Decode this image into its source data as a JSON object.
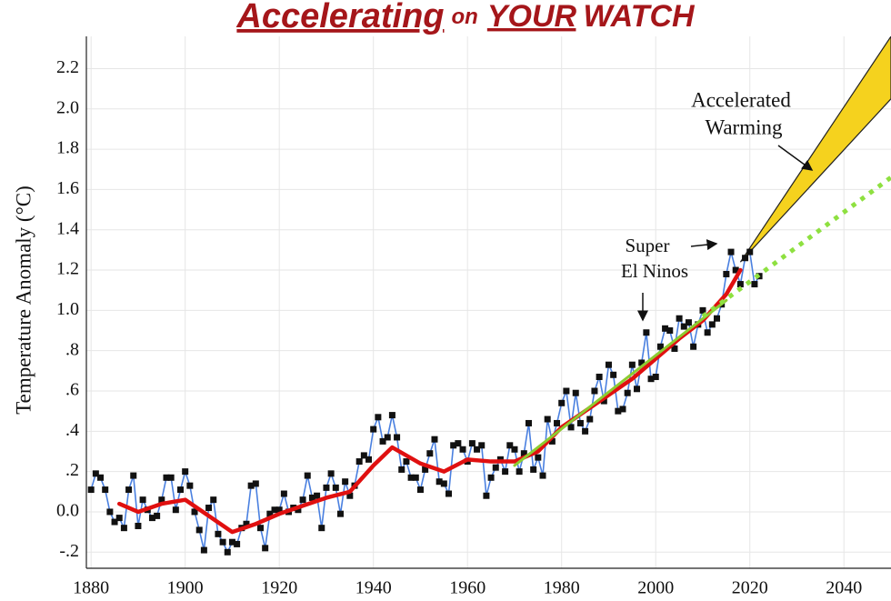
{
  "chart_data": {
    "type": "line",
    "title": [
      "Accelerating",
      "on",
      "YOUR",
      "WATCH"
    ],
    "y_label": "Temperature Anomaly (°C)",
    "xlim": [
      1879,
      2050
    ],
    "xticks": [
      1880,
      1900,
      1920,
      1940,
      1960,
      1980,
      2000,
      2020,
      2040
    ],
    "ylim": [
      -0.28,
      2.36
    ],
    "yticks": [
      {
        "value": -0.2,
        "label": "-.2"
      },
      {
        "value": 0,
        "label": "0.0"
      },
      {
        "value": 0.2,
        "label": ".2"
      },
      {
        "value": 0.4,
        "label": ".4"
      },
      {
        "value": 0.6,
        "label": ".6"
      },
      {
        "value": 0.8,
        "label": ".8"
      },
      {
        "value": 1,
        "label": "1.0"
      },
      1.2,
      1.4,
      1.6,
      1.8,
      {
        "value": 2,
        "label": "2.0"
      },
      2.2
    ],
    "grid": true,
    "series": [
      {
        "color": "#4a80e0",
        "marker_color": "#111111",
        "x": [
          1880,
          1881,
          1882,
          1883,
          1884,
          1885,
          1886,
          1887,
          1888,
          1889,
          1890,
          1891,
          1892,
          1893,
          1894,
          1895,
          1896,
          1897,
          1898,
          1899,
          1900,
          1901,
          1902,
          1903,
          1904,
          1905,
          1906,
          1907,
          1908,
          1909,
          1910,
          1911,
          1912,
          1913,
          1914,
          1915,
          1916,
          1917,
          1918,
          1919,
          1920,
          1921,
          1922,
          1923,
          1924,
          1925,
          1926,
          1927,
          1928,
          1929,
          1930,
          1931,
          1932,
          1933,
          1934,
          1935,
          1936,
          1937,
          1938,
          1939,
          1940,
          1941,
          1942,
          1943,
          1944,
          1945,
          1946,
          1947,
          1948,
          1949,
          1950,
          1951,
          1952,
          1953,
          1954,
          1955,
          1956,
          1957,
          1958,
          1959,
          1960,
          1961,
          1962,
          1963,
          1964,
          1965,
          1966,
          1967,
          1968,
          1969,
          1970,
          1971,
          1972,
          1973,
          1974,
          1975,
          1976,
          1977,
          1978,
          1979,
          1980,
          1981,
          1982,
          1983,
          1984,
          1985,
          1986,
          1987,
          1988,
          1989,
          1990,
          1991,
          1992,
          1993,
          1994,
          1995,
          1996,
          1997,
          1998,
          1999,
          2000,
          2001,
          2002,
          2003,
          2004,
          2005,
          2006,
          2007,
          2008,
          2009,
          2010,
          2011,
          2012,
          2013,
          2014,
          2015,
          2016,
          2017,
          2018,
          2019,
          2020,
          2021,
          2022
        ],
        "values": [
          0.11,
          0.19,
          0.17,
          0.11,
          0.0,
          -0.05,
          -0.03,
          -0.08,
          0.11,
          0.18,
          -0.07,
          0.06,
          0.01,
          -0.03,
          -0.02,
          0.06,
          0.17,
          0.17,
          0.01,
          0.11,
          0.2,
          0.13,
          0.0,
          -0.09,
          -0.19,
          0.02,
          0.06,
          -0.11,
          -0.15,
          -0.2,
          -0.15,
          -0.16,
          -0.08,
          -0.06,
          0.13,
          0.14,
          -0.08,
          -0.18,
          -0.01,
          0.01,
          0.01,
          0.09,
          0.0,
          0.02,
          0.01,
          0.06,
          0.18,
          0.07,
          0.08,
          -0.08,
          0.12,
          0.19,
          0.12,
          -0.01,
          0.15,
          0.08,
          0.13,
          0.25,
          0.28,
          0.26,
          0.41,
          0.47,
          0.35,
          0.37,
          0.48,
          0.37,
          0.21,
          0.25,
          0.17,
          0.17,
          0.11,
          0.21,
          0.29,
          0.36,
          0.15,
          0.14,
          0.09,
          0.33,
          0.34,
          0.31,
          0.25,
          0.34,
          0.31,
          0.33,
          0.08,
          0.17,
          0.22,
          0.26,
          0.2,
          0.33,
          0.31,
          0.2,
          0.29,
          0.44,
          0.21,
          0.27,
          0.18,
          0.46,
          0.35,
          0.44,
          0.54,
          0.6,
          0.42,
          0.59,
          0.44,
          0.4,
          0.46,
          0.6,
          0.67,
          0.55,
          0.73,
          0.68,
          0.5,
          0.51,
          0.59,
          0.73,
          0.61,
          0.74,
          0.89,
          0.66,
          0.67,
          0.82,
          0.91,
          0.9,
          0.81,
          0.96,
          0.92,
          0.94,
          0.82,
          0.93,
          1.0,
          0.89,
          0.93,
          0.96,
          1.03,
          1.18,
          1.29,
          1.2,
          1.13,
          1.26,
          1.29,
          1.13,
          1.17
        ]
      },
      {
        "color": "#e01010",
        "x": [
          1886,
          1890,
          1895,
          1900,
          1905,
          1910,
          1915,
          1920,
          1925,
          1930,
          1935,
          1940,
          1944,
          1950,
          1955,
          1960,
          1965,
          1970,
          1975,
          1980,
          1985,
          1990,
          1995,
          2000,
          2005,
          2010,
          2015,
          2018
        ],
        "values": [
          0.04,
          0.0,
          0.04,
          0.06,
          -0.02,
          -0.1,
          -0.06,
          -0.01,
          0.03,
          0.07,
          0.1,
          0.23,
          0.32,
          0.24,
          0.2,
          0.26,
          0.25,
          0.25,
          0.3,
          0.42,
          0.5,
          0.58,
          0.66,
          0.76,
          0.86,
          0.95,
          1.08,
          1.2
        ]
      },
      {
        "color": "#8ccc30",
        "x": [
          1970,
          2015
        ],
        "values": [
          0.23,
          1.05
        ]
      },
      {
        "color": "#8ee040",
        "dashed": true,
        "x": [
          2010,
          2050
        ],
        "values": [
          0.97,
          1.66
        ]
      }
    ],
    "wedge": {
      "color": "#f5d21e",
      "x": [
        2018,
        2050,
        2050
      ],
      "values": [
        1.24,
        2.36,
        2.05
      ]
    },
    "annotations": [
      "Accelerated",
      "Warming",
      "Super",
      "El Ninos"
    ]
  }
}
